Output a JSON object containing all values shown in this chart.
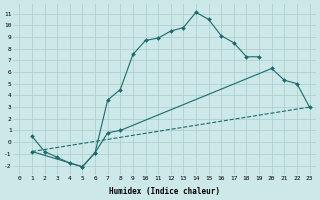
{
  "xlabel": "Humidex (Indice chaleur)",
  "xlim": [
    -0.5,
    23.5
  ],
  "ylim": [
    -2.8,
    11.8
  ],
  "xticks": [
    0,
    1,
    2,
    3,
    4,
    5,
    6,
    7,
    8,
    9,
    10,
    11,
    12,
    13,
    14,
    15,
    16,
    17,
    18,
    19,
    20,
    21,
    22,
    23
  ],
  "yticks": [
    -2,
    -1,
    0,
    1,
    2,
    3,
    4,
    5,
    6,
    7,
    8,
    9,
    10,
    11
  ],
  "background_color": "#cde8e8",
  "grid_color": "#aacccc",
  "line_color": "#1a6b6b",
  "line1_x": [
    1,
    2,
    3,
    4,
    5,
    6,
    7,
    8,
    9,
    10,
    11,
    12,
    13,
    14,
    15,
    16,
    17,
    18,
    19
  ],
  "line1_y": [
    0.5,
    -0.8,
    -1.3,
    -1.8,
    -2.1,
    -0.9,
    3.6,
    4.5,
    7.5,
    8.7,
    8.9,
    9.5,
    9.8,
    11.1,
    10.5,
    9.1,
    8.5,
    7.3,
    7.3
  ],
  "line2_x": [
    1,
    5,
    6,
    7,
    8,
    20,
    21,
    22,
    23
  ],
  "line2_y": [
    -0.8,
    -2.1,
    -0.9,
    0.8,
    1.0,
    6.3,
    5.3,
    5.0,
    3.0
  ],
  "line3_x": [
    1,
    23
  ],
  "line3_y": [
    -0.8,
    3.0
  ],
  "tick_fontsize": 4.5,
  "xlabel_fontsize": 5.5
}
